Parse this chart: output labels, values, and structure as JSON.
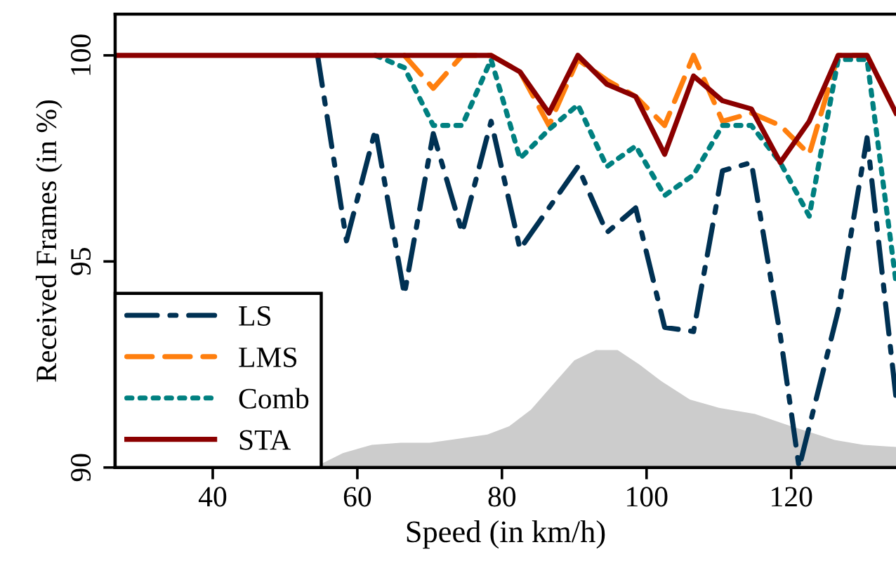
{
  "chart_data": {
    "type": "line",
    "xlabel": "Speed (in km/h)",
    "ylabel": "Received Frames (in %)",
    "xlim": [
      26.5,
      134.5
    ],
    "xticks": [
      40,
      60,
      80,
      100,
      120
    ],
    "ylim": [
      90,
      101
    ],
    "yticks": [
      90,
      95,
      100
    ],
    "grid": false,
    "legend": "bottom left",
    "marker": "none",
    "series": [
      {
        "type": "area",
        "color": "#cccccc",
        "x": [
          54,
          58,
          62,
          66,
          70,
          74,
          78,
          81,
          84,
          87,
          90,
          93,
          96,
          99,
          102,
          106,
          110,
          115,
          120,
          126,
          130,
          134.5
        ],
        "values": [
          90.0,
          90.35,
          90.55,
          90.6,
          90.6,
          90.7,
          90.8,
          91.0,
          91.4,
          92.0,
          92.6,
          92.85,
          92.85,
          92.5,
          92.1,
          91.65,
          91.45,
          91.3,
          91.0,
          90.67,
          90.55,
          90.5
        ]
      },
      {
        "name": "LS",
        "color": "#003153",
        "line_style": "dashdot",
        "x": [
          54.5,
          58.5,
          62.5,
          66.5,
          70.5,
          74.5,
          78.5,
          82.5,
          86.5,
          90.5,
          94.5,
          98.5,
          102.5,
          106.5,
          110.5,
          114.5,
          118.5,
          121.1,
          126.5,
          130.5,
          134.5
        ],
        "values": [
          100,
          95.5,
          98.2,
          94.2,
          98.1,
          95.7,
          98.4,
          95.3,
          96.3,
          97.3,
          95.7,
          96.3,
          93.4,
          93.3,
          97.2,
          97.4,
          93.2,
          90,
          93.8,
          98.0,
          91.7
        ]
      },
      {
        "name": "LMS",
        "color": "#ff7f0e",
        "line_style": "dashed",
        "x": [
          66.5,
          70.5,
          74.5,
          78.5,
          82.5,
          86.5,
          90.5,
          94.5,
          98.5,
          102.5,
          106.5,
          110.5,
          114.5,
          118.5,
          122.5,
          126.5,
          130.5,
          134.5
        ],
        "values": [
          100,
          99.2,
          100,
          100,
          99.6,
          98.3,
          99.9,
          99.4,
          99.0,
          98.3,
          100,
          98.4,
          98.6,
          98.3,
          97.6,
          100,
          100,
          98.6
        ]
      },
      {
        "name": "Comb",
        "color": "#008080",
        "line_style": "dotted",
        "x": [
          62.5,
          66.5,
          70.5,
          74.5,
          78.5,
          82.5,
          86.5,
          90.5,
          94.5,
          98.5,
          102.5,
          106.5,
          110.5,
          114.5,
          118.5,
          122.5,
          126.5,
          130.5,
          134.5
        ],
        "values": [
          100,
          99.7,
          98.3,
          98.3,
          99.9,
          97.5,
          98.2,
          98.8,
          97.3,
          97.8,
          96.6,
          97.1,
          98.3,
          98.3,
          97.4,
          96.1,
          99.9,
          99.9,
          94.5
        ]
      },
      {
        "name": "STA",
        "color": "#8b0000",
        "line_style": "solid",
        "x": [
          26.5,
          30.5,
          34.5,
          38.5,
          42.5,
          46.5,
          50.5,
          54.5,
          58.5,
          62.5,
          66.5,
          70.5,
          74.5,
          78.5,
          82.5,
          86.5,
          90.5,
          94.5,
          98.5,
          102.5,
          106.5,
          110.5,
          114.5,
          118.5,
          122.5,
          126.5,
          130.5,
          134.5
        ],
        "values": [
          100,
          100,
          100,
          100,
          100,
          100,
          100,
          100,
          100,
          100,
          100,
          100,
          100,
          100,
          99.6,
          98.6,
          100,
          99.3,
          99.0,
          97.6,
          99.5,
          98.9,
          98.7,
          97.4,
          98.4,
          100,
          100,
          98.6
        ]
      }
    ]
  }
}
